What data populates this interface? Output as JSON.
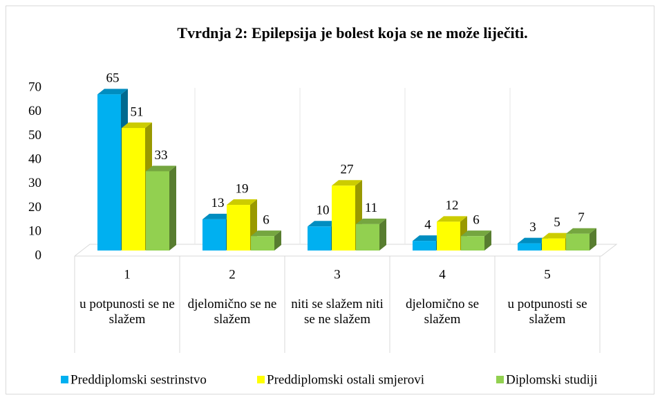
{
  "chart_data": {
    "type": "bar3d",
    "title": "Tvrdnja 2: Epilepsija je bolest koja se ne može liječiti.",
    "categories": [
      "1",
      "2",
      "3",
      "4",
      "5"
    ],
    "category_descriptions": [
      "u potpunosti se ne slažem",
      "djelomično se ne slažem",
      "niti se slažem niti se ne slažem",
      "djelomično se slažem",
      "u potpunosti se slažem"
    ],
    "series": [
      {
        "name": "Preddiplomski sestrinstvo",
        "color": "#00b0f0",
        "values": [
          65,
          13,
          10,
          4,
          3
        ]
      },
      {
        "name": "Preddiplomski ostali smjerovi",
        "color": "#ffff00",
        "values": [
          51,
          19,
          27,
          12,
          5
        ]
      },
      {
        "name": "Diplomski studiji",
        "color": "#92d050",
        "values": [
          33,
          6,
          11,
          6,
          7
        ]
      }
    ],
    "ylim": [
      0,
      70
    ],
    "yticks": [
      0,
      10,
      20,
      30,
      40,
      50,
      60,
      70
    ],
    "grid": false,
    "legend": "bottom"
  }
}
